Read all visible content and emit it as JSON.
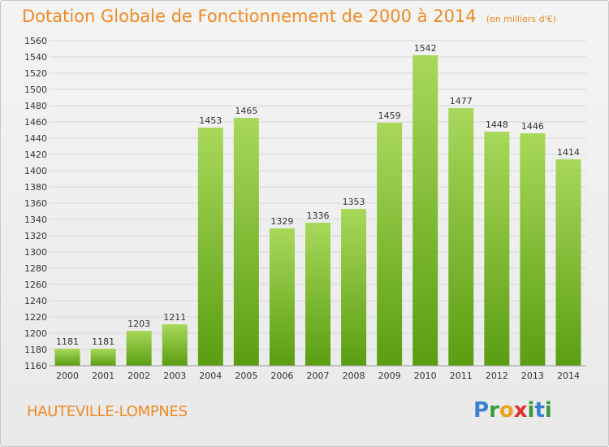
{
  "header": {
    "title": "Dotation Globale de Fonctionnement de 2000 à 2014",
    "subtitle": "(en milliers d'€)"
  },
  "footer": {
    "commune": "HAUTEVILLE-LOMPNES",
    "logo": [
      "P",
      "r",
      "o",
      "x",
      "i",
      "t",
      "i"
    ]
  },
  "colors": {
    "title": "#f08a24",
    "bar_top": "#a8d85a",
    "bar_bottom": "#5a9e12"
  },
  "chart_data": {
    "type": "bar",
    "title": "Dotation Globale de Fonctionnement de 2000 à 2014",
    "subtitle": "(en milliers d'€)",
    "xlabel": "",
    "ylabel": "",
    "categories": [
      "2000",
      "2001",
      "2002",
      "2003",
      "2004",
      "2005",
      "2006",
      "2007",
      "2008",
      "2009",
      "2010",
      "2011",
      "2012",
      "2013",
      "2014"
    ],
    "values": [
      1181,
      1181,
      1203,
      1211,
      1453,
      1465,
      1329,
      1336,
      1353,
      1459,
      1542,
      1477,
      1448,
      1446,
      1414
    ],
    "ylim": [
      1160,
      1560
    ],
    "ytick_step": 20,
    "grid": true
  }
}
